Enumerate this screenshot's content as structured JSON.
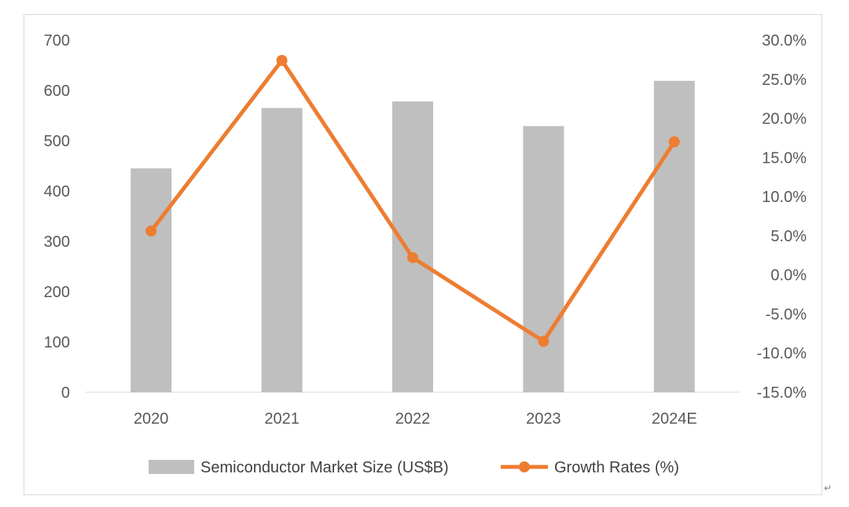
{
  "chart_data": {
    "type": "bar",
    "categories": [
      "2020",
      "2021",
      "2022",
      "2023",
      "2024E"
    ],
    "series": [
      {
        "name": "Semiconductor Market Size (US$B)",
        "type": "bar",
        "axis": "left",
        "color": "#bfbfbf",
        "values": [
          445,
          565,
          578,
          529,
          619
        ]
      },
      {
        "name": "Growth Rates (%)",
        "type": "line",
        "axis": "right",
        "color": "#ed7d31",
        "values": [
          5.6,
          27.4,
          2.2,
          -8.5,
          17.0
        ]
      }
    ],
    "y_left": {
      "ylim": [
        0,
        700
      ],
      "ticks": [
        0,
        100,
        200,
        300,
        400,
        500,
        600,
        700
      ],
      "tick_labels": [
        "0",
        "100",
        "200",
        "300",
        "400",
        "500",
        "600",
        "700"
      ]
    },
    "y_right": {
      "ylim": [
        -15,
        30
      ],
      "ticks": [
        -15,
        -10,
        -5,
        0,
        5,
        10,
        15,
        20,
        25,
        30
      ],
      "tick_labels": [
        "-15.0%",
        "-10.0%",
        "-5.0%",
        "0.0%",
        "5.0%",
        "10.0%",
        "15.0%",
        "20.0%",
        "25.0%",
        "30.0%"
      ]
    },
    "grid": false,
    "legend_position": "bottom"
  },
  "paragraph_mark": "↵"
}
